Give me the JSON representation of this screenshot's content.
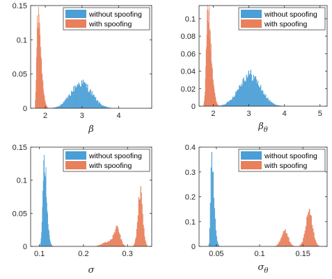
{
  "colors": {
    "without": "#4a9fd6",
    "with": "#e8805c",
    "axis": "#262626"
  },
  "chart_data": [
    {
      "type": "bar",
      "xlabel": "β",
      "xlim": [
        1.6,
        4.9
      ],
      "ylim": [
        0,
        0.15
      ],
      "xticks": [
        "2",
        "3",
        "4"
      ],
      "xtick_values": [
        2,
        3,
        4
      ],
      "yticks": [
        "0",
        "0.05",
        "0.1",
        "0.15"
      ],
      "ytick_values": [
        0,
        0.05,
        0.1,
        0.15
      ],
      "legend": {
        "position": "top-right",
        "entries": [
          "without spoofing",
          "with spoofing"
        ]
      },
      "series": [
        {
          "name": "without spoofing",
          "shape": "gauss",
          "mean": 2.98,
          "sd": 0.28,
          "peak": 0.037,
          "xmin": 2.0,
          "xmax": 4.5,
          "step": 0.02
        },
        {
          "name": "with spoofing",
          "shape": "skew",
          "mode": 1.79,
          "sdl": 0.03,
          "sdr": 0.09,
          "peak": 0.131,
          "xmin": 1.72,
          "xmax": 2.35,
          "step": 0.01
        }
      ]
    },
    {
      "type": "bar",
      "xlabel": "β",
      "xlabel_sub": "θ",
      "xlim": [
        1.6,
        5.2
      ],
      "ylim": [
        0,
        0.115
      ],
      "xticks": [
        "2",
        "3",
        "4",
        "5"
      ],
      "xtick_values": [
        2,
        3,
        4,
        5
      ],
      "yticks": [
        "0",
        "0.02",
        "0.04",
        "0.06",
        "0.08",
        "0.1"
      ],
      "ytick_values": [
        0,
        0.02,
        0.04,
        0.06,
        0.08,
        0.1
      ],
      "legend": {
        "position": "top-right",
        "entries": [
          "without spoofing",
          "with spoofing"
        ]
      },
      "series": [
        {
          "name": "without spoofing",
          "shape": "gauss",
          "mean": 3.02,
          "sd": 0.3,
          "peak": 0.036,
          "xmin": 2.0,
          "xmax": 4.8,
          "step": 0.02
        },
        {
          "name": "with spoofing",
          "shape": "skew",
          "mode": 1.84,
          "sdl": 0.04,
          "sdr": 0.1,
          "peak": 0.107,
          "xmin": 1.72,
          "xmax": 2.4,
          "step": 0.01
        }
      ]
    },
    {
      "type": "bar",
      "xlabel": "σ",
      "xlim": [
        0.08,
        0.355
      ],
      "ylim": [
        0,
        0.15
      ],
      "xticks": [
        "0.1",
        "0.2",
        "0.3"
      ],
      "xtick_values": [
        0.1,
        0.2,
        0.3
      ],
      "yticks": [
        "0",
        "0.05",
        "0.1",
        "0.15"
      ],
      "ytick_values": [
        0,
        0.05,
        0.1,
        0.15
      ],
      "legend": {
        "position": "top-right",
        "entries": [
          "without spoofing",
          "with spoofing"
        ]
      },
      "series": [
        {
          "name": "without spoofing",
          "shape": "skew",
          "mode": 0.11,
          "sdl": 0.003,
          "sdr": 0.006,
          "peak": 0.136,
          "xmin": 0.1,
          "xmax": 0.135,
          "step": 0.001
        },
        {
          "name": "with spoofing",
          "shape": "multi",
          "xmin": 0.2,
          "xmax": 0.345,
          "step": 0.0015,
          "components": [
            {
              "mean": 0.329,
              "sd": 0.0055,
              "peak": 0.081
            },
            {
              "mean": 0.276,
              "sd": 0.007,
              "peak": 0.026
            },
            {
              "mean": 0.255,
              "sd": 0.012,
              "peak": 0.007
            }
          ]
        }
      ]
    },
    {
      "type": "bar",
      "xlabel": "σ",
      "xlabel_sub": "θ",
      "xlim": [
        0.03,
        0.178
      ],
      "ylim": [
        0,
        0.4
      ],
      "xticks": [
        "0.05",
        "0.1",
        "0.15"
      ],
      "xtick_values": [
        0.05,
        0.1,
        0.15
      ],
      "yticks": [
        "0",
        "0.1",
        "0.2",
        "0.3",
        "0.4"
      ],
      "ytick_values": [
        0,
        0.1,
        0.2,
        0.3,
        0.4
      ],
      "legend": {
        "position": "top-right",
        "entries": [
          "without spoofing",
          "with spoofing"
        ]
      },
      "series": [
        {
          "name": "without spoofing",
          "shape": "skew",
          "mode": 0.044,
          "sdl": 0.001,
          "sdr": 0.003,
          "peak": 0.34,
          "xmin": 0.041,
          "xmax": 0.058,
          "step": 0.0008
        },
        {
          "name": "with spoofing",
          "shape": "multi",
          "xmin": 0.11,
          "xmax": 0.168,
          "step": 0.001,
          "components": [
            {
              "mean": 0.157,
              "sd": 0.004,
              "peak": 0.13
            },
            {
              "mean": 0.129,
              "sd": 0.004,
              "peak": 0.06
            }
          ]
        }
      ]
    }
  ]
}
